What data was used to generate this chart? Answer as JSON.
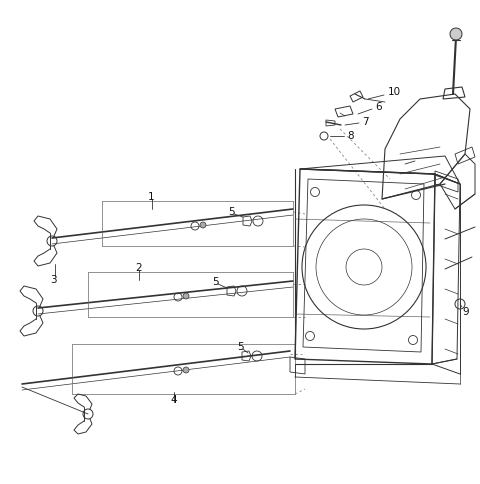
{
  "background_color": "#ffffff",
  "fig_width": 4.8,
  "fig_height": 4.85,
  "dpi": 100,
  "line_color": "#333333",
  "line_color_light": "#666666",
  "label_color": "#111111",
  "label_fontsize": 7.0
}
